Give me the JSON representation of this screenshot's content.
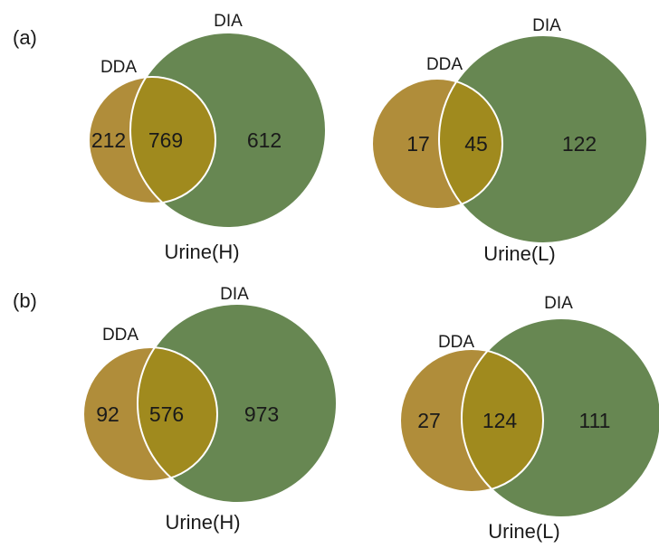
{
  "panels": [
    {
      "label": "(a)",
      "diagrams": [
        {
          "dda_label": "DDA",
          "dia_label": "DIA",
          "dda_only": "212",
          "overlap": "769",
          "dia_only": "612",
          "sample": "Urine(H)"
        },
        {
          "dda_label": "DDA",
          "dia_label": "DIA",
          "dda_only": "17",
          "overlap": "45",
          "dia_only": "122",
          "sample": "Urine(L)"
        }
      ]
    },
    {
      "label": "(b)",
      "diagrams": [
        {
          "dda_label": "DDA",
          "dia_label": "DIA",
          "dda_only": "92",
          "overlap": "576",
          "dia_only": "973",
          "sample": "Urine(H)"
        },
        {
          "dda_label": "DDA",
          "dia_label": "DIA",
          "dda_only": "27",
          "overlap": "124",
          "dia_only": "111",
          "sample": "Urine(L)"
        }
      ]
    }
  ],
  "colors": {
    "dda": "#b08d3a",
    "dia": "#678752",
    "overlap": "#a08a1e",
    "outline": "#ffffff"
  }
}
